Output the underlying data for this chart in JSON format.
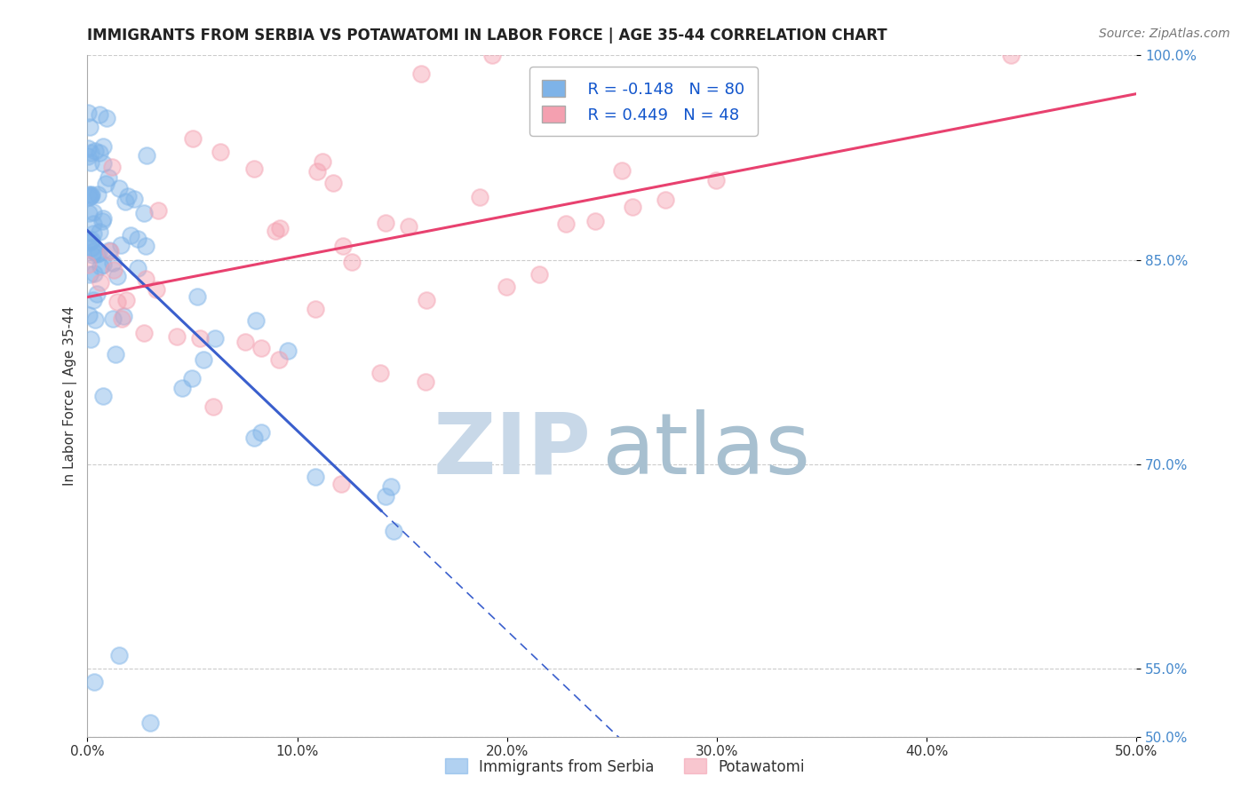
{
  "title": "IMMIGRANTS FROM SERBIA VS POTAWATOMI IN LABOR FORCE | AGE 35-44 CORRELATION CHART",
  "source": "Source: ZipAtlas.com",
  "ylabel": "In Labor Force | Age 35-44",
  "xlim": [
    0.0,
    50.0
  ],
  "ylim": [
    50.0,
    100.0
  ],
  "serbia_R": -0.148,
  "serbia_N": 80,
  "potawatomi_R": 0.449,
  "potawatomi_N": 48,
  "serbia_color": "#7EB3E8",
  "potawatomi_color": "#F4A0B0",
  "serbia_line_color": "#3A5FCD",
  "potawatomi_line_color": "#E8416F",
  "watermark_zip": "ZIP",
  "watermark_atlas": "atlas",
  "watermark_color_zip": "#C8D8E8",
  "watermark_color_atlas": "#A0B8C8",
  "background_color": "#FFFFFF",
  "grid_color": "#CCCCCC",
  "ytick_labels": [
    "100.0%",
    "85.0%",
    "70.0%",
    "55.0%",
    "50.0%"
  ],
  "ytick_values": [
    100,
    85,
    70,
    55,
    50
  ],
  "xtick_labels": [
    "0.0%",
    "10.0%",
    "20.0%",
    "30.0%",
    "40.0%",
    "50.0%"
  ],
  "xtick_values": [
    0,
    10,
    20,
    30,
    40,
    50
  ],
  "serbia_intercept": 85.0,
  "serbia_slope": -1.0,
  "potawatomi_intercept": 80.0,
  "potawatomi_slope": 0.45
}
